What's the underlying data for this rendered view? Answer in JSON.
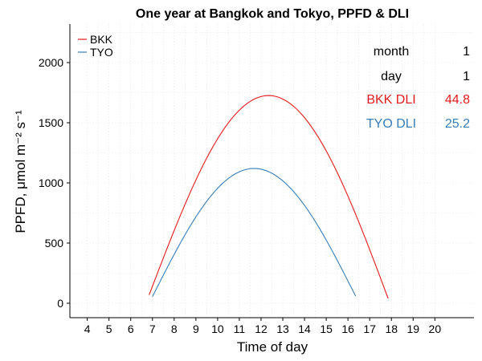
{
  "chart_data": {
    "type": "line",
    "title": "One year at Bangkok and Tokyo, PPFD & DLI",
    "xlabel": "Time of day",
    "ylabel": "PPFD, μmol m⁻² s⁻¹",
    "xlim": [
      3.2,
      21.8
    ],
    "ylim": [
      -120,
      2320
    ],
    "x_ticks": [
      4,
      5,
      6,
      7,
      8,
      9,
      10,
      11,
      12,
      13,
      14,
      15,
      16,
      17,
      18,
      19,
      20
    ],
    "y_ticks": [
      0,
      500,
      1000,
      1500,
      2000
    ],
    "grid": true,
    "legend_position": "top-left",
    "series": [
      {
        "name": "BKK",
        "color": "#e41a1c",
        "sunrise": 6.85,
        "sunset": 17.85,
        "peak_time": 12.35,
        "peak_value": 1726,
        "start_value": 70,
        "end_value": 40
      },
      {
        "name": "TYO",
        "color": "#377eb8",
        "sunrise": 7.0,
        "sunset": 16.35,
        "peak_time": 11.68,
        "peak_value": 1120,
        "start_value": 55,
        "end_value": 60
      }
    ],
    "annotations": [
      {
        "label": "month",
        "value": "1",
        "color": "#000000"
      },
      {
        "label": "day",
        "value": "1",
        "color": "#000000"
      },
      {
        "label": "BKK DLI",
        "value": "44.8",
        "color": "#e41a1c"
      },
      {
        "label": "TYO DLI",
        "value": "25.2",
        "color": "#377eb8"
      }
    ]
  }
}
